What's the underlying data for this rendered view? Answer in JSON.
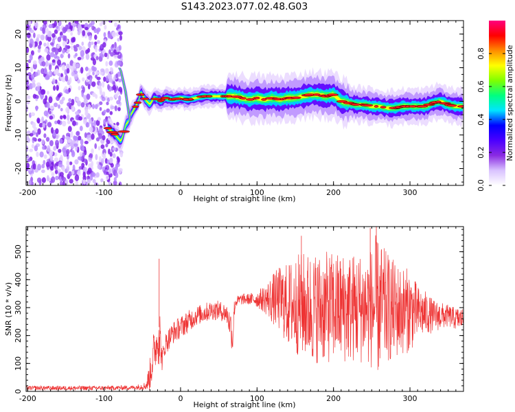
{
  "figure": {
    "title": "S143.2023.077.02.48.G03"
  },
  "chart_data": [
    {
      "type": "heatmap",
      "title": "",
      "xlabel": "Height of straight line (km)",
      "ylabel": "Frequency (Hz)",
      "xlim": [
        -202,
        370
      ],
      "ylim": [
        -25,
        24
      ],
      "xticks": [
        -200,
        -100,
        0,
        100,
        200,
        300
      ],
      "yticks": [
        -20,
        -10,
        0,
        10,
        20
      ],
      "colorbar": {
        "label": "Normalized spectral amplitude",
        "ticks": [
          0.0,
          0.2,
          0.4,
          0.6,
          0.8
        ],
        "range": [
          0,
          1
        ],
        "colormap": [
          "#ffffff",
          "#d9c2ff",
          "#8a2be2",
          "#4b00ff",
          "#0000ff",
          "#00e5ff",
          "#00ff80",
          "#7fff00",
          "#ffff00",
          "#ff8c00",
          "#ff0000",
          "#ff007f"
        ]
      },
      "ridge": {
        "x": [
          -95,
          -85,
          -78,
          -75,
          -72,
          -68,
          -65,
          -60,
          -55,
          -52,
          -48,
          -44,
          -40,
          -35,
          -30,
          -25,
          -20,
          -10,
          0,
          10,
          20,
          30,
          40,
          50,
          60,
          70,
          80,
          90,
          100,
          110,
          120,
          130,
          140,
          150,
          160,
          170,
          180,
          190,
          200,
          210,
          220,
          230,
          240,
          250,
          260,
          270,
          280,
          290,
          300,
          310,
          320,
          330,
          340,
          350,
          360,
          370
        ],
        "freq": [
          -8,
          -10,
          -12,
          -10,
          -7,
          -6,
          -4,
          -2,
          0,
          3,
          1,
          0,
          -1,
          1,
          0.5,
          0,
          1,
          0.5,
          1,
          0.5,
          1,
          1.5,
          1.5,
          1.5,
          1.5,
          1.5,
          1,
          0.5,
          1,
          0.5,
          1,
          0.5,
          1,
          1,
          1.5,
          2,
          2,
          1.5,
          2,
          0,
          -0.5,
          -1,
          -1,
          -1.5,
          -1.5,
          -2,
          -2,
          -1.5,
          -1.5,
          -1.5,
          -1.5,
          -0.5,
          0,
          -1,
          -1.5,
          -1.5
        ]
      },
      "branch": {
        "x": [
          -80,
          -78,
          -75,
          -72,
          -70,
          -68,
          -66
        ],
        "freq": [
          10,
          9,
          6,
          3,
          0,
          -3,
          -6
        ]
      }
    },
    {
      "type": "line",
      "title": "",
      "xlabel": "Height of straight line (km)",
      "ylabel": "SNR (10 * v/v)",
      "xlim": [
        -202,
        370
      ],
      "ylim": [
        0,
        590
      ],
      "xticks": [
        -200,
        -100,
        0,
        100,
        200,
        300
      ],
      "yticks": [
        0,
        100,
        200,
        300,
        400,
        500
      ],
      "series_color": "#ee3333",
      "envelope": {
        "x": [
          -202,
          -150,
          -100,
          -60,
          -45,
          -40,
          -35,
          -30,
          -28,
          -26,
          -24,
          -20,
          -10,
          0,
          10,
          20,
          30,
          40,
          50,
          60,
          66,
          68,
          70,
          72,
          80,
          90,
          100,
          110,
          120,
          130,
          140,
          150,
          160,
          170,
          180,
          190,
          200,
          210,
          220,
          230,
          240,
          250,
          255,
          260,
          270,
          280,
          290,
          300,
          310,
          320,
          330,
          340,
          350,
          360,
          370
        ],
        "mean": [
          12,
          12,
          12,
          14,
          20,
          60,
          140,
          180,
          230,
          160,
          110,
          170,
          210,
          230,
          250,
          270,
          280,
          290,
          290,
          280,
          230,
          180,
          290,
          320,
          330,
          330,
          330,
          330,
          330,
          330,
          310,
          310,
          310,
          300,
          300,
          300,
          300,
          300,
          300,
          300,
          300,
          300,
          300,
          300,
          300,
          290,
          290,
          290,
          280,
          280,
          270,
          270,
          270,
          260,
          260
        ],
        "spread": [
          8,
          8,
          8,
          8,
          15,
          60,
          80,
          70,
          150,
          60,
          40,
          40,
          40,
          40,
          40,
          35,
          35,
          35,
          35,
          35,
          60,
          60,
          35,
          20,
          20,
          20,
          30,
          50,
          90,
          120,
          150,
          180,
          190,
          200,
          200,
          200,
          200,
          200,
          200,
          200,
          200,
          220,
          260,
          240,
          200,
          180,
          160,
          150,
          100,
          80,
          60,
          50,
          40,
          40,
          40
        ]
      },
      "peaks": [
        {
          "x": -28,
          "y": 475
        },
        {
          "x": 158,
          "y": 557
        },
        {
          "x": 248,
          "y": 585
        },
        {
          "x": 256,
          "y": 590
        }
      ]
    }
  ]
}
